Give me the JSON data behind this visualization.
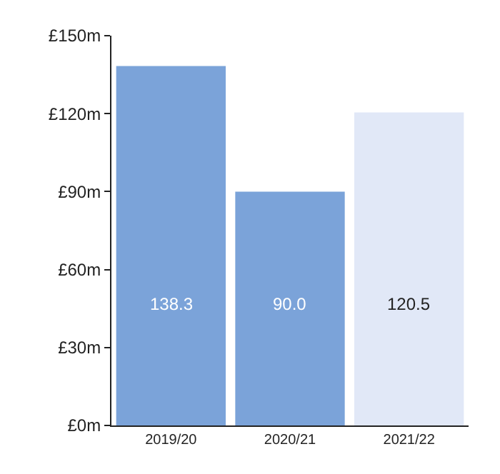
{
  "chart_data": {
    "type": "bar",
    "categories": [
      "2019/20",
      "2020/21",
      "2021/22"
    ],
    "values": [
      138.3,
      90.0,
      120.5
    ],
    "colors": [
      "#7ba3d9",
      "#7ba3d9",
      "#e1e8f7"
    ],
    "value_labels": [
      "138.3",
      "90.0",
      "120.5"
    ],
    "ylim": [
      0,
      150
    ],
    "yticks": [
      {
        "value": 0,
        "label": "£0m"
      },
      {
        "value": 30,
        "label": "£30m"
      },
      {
        "value": 60,
        "label": "£60m"
      },
      {
        "value": 90,
        "label": "£90m"
      },
      {
        "value": 120,
        "label": "£120m"
      },
      {
        "value": 150,
        "label": "£150m"
      }
    ],
    "legend": false
  }
}
